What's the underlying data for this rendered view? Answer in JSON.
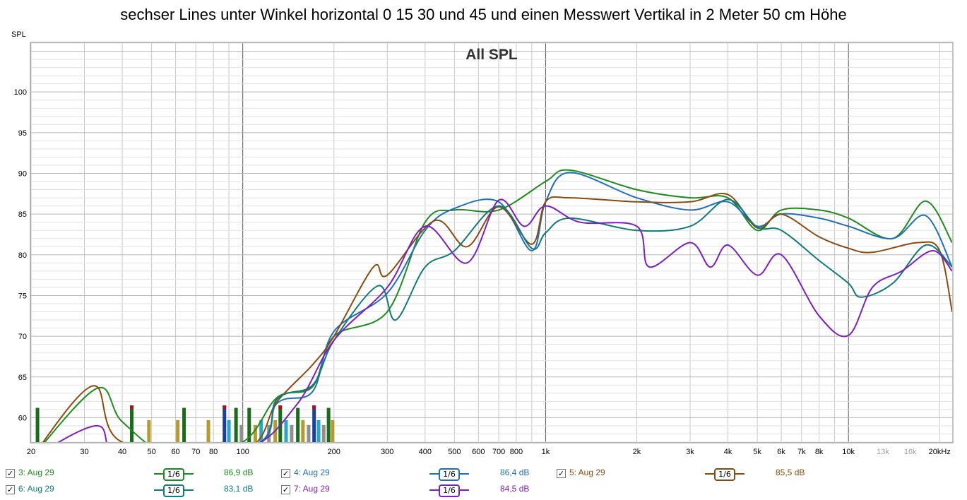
{
  "chart_data": {
    "type": "line",
    "title": "sechser Lines unter Winkel horizontal 0 15 30 und 45 und einen Messwert Vertikal in 2 Meter 50 cm Höhe",
    "subtitle": "All SPL",
    "ylabel": "SPL",
    "xlabel": "",
    "xscale": "log",
    "xlim": [
      20,
      22000
    ],
    "ylim": [
      57,
      106
    ],
    "grid": true,
    "x_ticks": [
      {
        "v": 20,
        "label": "20"
      },
      {
        "v": 30,
        "label": "30"
      },
      {
        "v": 40,
        "label": "40"
      },
      {
        "v": 50,
        "label": "50"
      },
      {
        "v": 60,
        "label": "60"
      },
      {
        "v": 70,
        "label": "70"
      },
      {
        "v": 80,
        "label": "80"
      },
      {
        "v": 100,
        "label": "100"
      },
      {
        "v": 200,
        "label": "200"
      },
      {
        "v": 300,
        "label": "300"
      },
      {
        "v": 400,
        "label": "400"
      },
      {
        "v": 500,
        "label": "500"
      },
      {
        "v": 600,
        "label": "600"
      },
      {
        "v": 700,
        "label": "700"
      },
      {
        "v": 800,
        "label": "800"
      },
      {
        "v": 1000,
        "label": "1k"
      },
      {
        "v": 2000,
        "label": "2k"
      },
      {
        "v": 3000,
        "label": "3k"
      },
      {
        "v": 4000,
        "label": "4k"
      },
      {
        "v": 5000,
        "label": "5k"
      },
      {
        "v": 6000,
        "label": "6k"
      },
      {
        "v": 7000,
        "label": "7k"
      },
      {
        "v": 8000,
        "label": "8k"
      },
      {
        "v": 10000,
        "label": "10k"
      },
      {
        "v": 13000,
        "label": "13k",
        "faint": true
      },
      {
        "v": 16000,
        "label": "16k",
        "faint": true
      },
      {
        "v": 20000,
        "label": "20kHz"
      }
    ],
    "y_ticks": [
      60,
      65,
      70,
      75,
      80,
      85,
      90,
      95,
      100
    ],
    "series": [
      {
        "name": "3: Aug 29",
        "color": "#1c8c1c",
        "x": [
          20,
          33,
          40,
          60,
          100,
          130,
          170,
          200,
          300,
          400,
          500,
          700,
          1000,
          1200,
          2000,
          3000,
          4000,
          5000,
          6000,
          8000,
          10000,
          14000,
          18000,
          22000
        ],
        "y": [
          55,
          63.6,
          59.5,
          55,
          57,
          62.5,
          63.8,
          70,
          73,
          84,
          85.5,
          85.5,
          89,
          90.4,
          88,
          87,
          87,
          83,
          85.5,
          85.5,
          84.5,
          82,
          86.6,
          81.5
        ]
      },
      {
        "name": "4: Aug 29",
        "color": "#1f6fbf",
        "x": [
          20,
          100,
          130,
          170,
          200,
          300,
          400,
          500,
          700,
          900,
          1000,
          1200,
          2000,
          3000,
          4000,
          5000,
          6000,
          8000,
          10000,
          14000,
          18000,
          22000
        ],
        "y": [
          55,
          56,
          61.8,
          63.2,
          70.6,
          75.3,
          83,
          85.7,
          86.5,
          80.5,
          86.5,
          90.1,
          87,
          85.5,
          86.5,
          83.5,
          85,
          84.5,
          83.5,
          82,
          84.8,
          78.5
        ]
      },
      {
        "name": "5: Aug 29",
        "color": "#8b4a0e",
        "x": [
          20,
          32,
          40,
          100,
          130,
          170,
          200,
          270,
          300,
          430,
          550,
          700,
          900,
          1000,
          1200,
          2000,
          3000,
          4000,
          5000,
          6000,
          8000,
          10000,
          12000,
          17000,
          20000,
          22000
        ],
        "y": [
          55,
          63.9,
          57,
          56,
          62,
          66.5,
          70,
          78.5,
          77.5,
          84.2,
          81,
          85.9,
          81.3,
          86.5,
          87,
          86.5,
          86.5,
          87.4,
          83.3,
          85.0,
          82.2,
          80.8,
          80.3,
          81.5,
          80.5,
          73
        ]
      },
      {
        "name": "6: Aug 29",
        "color": "#0f7b7b",
        "x": [
          20,
          100,
          130,
          170,
          200,
          280,
          320,
          400,
          500,
          700,
          900,
          1000,
          1200,
          2000,
          3000,
          4000,
          5000,
          6000,
          8000,
          10000,
          11000,
          14000,
          18000,
          22000
        ],
        "y": [
          55,
          56,
          62.3,
          64,
          69.5,
          76.2,
          72,
          78.5,
          80.5,
          86,
          80.8,
          82.7,
          84.5,
          83,
          83.5,
          86.8,
          83.4,
          83.0,
          79.3,
          76.5,
          74.8,
          76.5,
          81.2,
          78.5
        ]
      },
      {
        "name": "7: Aug 29",
        "color": "#7d1fbf",
        "x": [
          20,
          33,
          40,
          100,
          150,
          200,
          300,
          400,
          550,
          700,
          850,
          1000,
          1300,
          2000,
          2200,
          3000,
          3500,
          4000,
          5000,
          6000,
          8000,
          10000,
          12000,
          15000,
          19000,
          22000
        ],
        "y": [
          55,
          59,
          55,
          56,
          61.5,
          69.5,
          76,
          83.5,
          79,
          86.7,
          83.5,
          86,
          84,
          83.5,
          78.5,
          81.5,
          78.5,
          81.2,
          77.5,
          80.0,
          72.5,
          70.1,
          76,
          78,
          80.5,
          78
        ]
      }
    ],
    "spikes": [
      {
        "f": 21,
        "v": 61.2,
        "color": "#1a6b1a",
        "top": "#1a6b1a"
      },
      {
        "f": 43,
        "v": 61.5,
        "color": "#1a6b1a",
        "top": "#b01010"
      },
      {
        "f": 49,
        "v": 59.7,
        "color": "#b59a30",
        "top": "#b59a30"
      },
      {
        "f": 61,
        "v": 59.7,
        "color": "#b59a30",
        "top": "#b59a30"
      },
      {
        "f": 64,
        "v": 61.2,
        "color": "#1a6b1a",
        "top": "#1a6b1a"
      },
      {
        "f": 77,
        "v": 59.7,
        "color": "#b59a30",
        "top": "#b59a30"
      },
      {
        "f": 87,
        "v": 61.5,
        "color": "#1a3fa0",
        "top": "#b01010"
      },
      {
        "f": 90,
        "v": 59.7,
        "color": "#2aa7c0",
        "top": "#2aa7c0"
      },
      {
        "f": 95,
        "v": 61.2,
        "color": "#1a6b1a",
        "top": "#1a6b1a"
      },
      {
        "f": 99,
        "v": 59.1,
        "color": "#909090",
        "top": "#909090"
      },
      {
        "f": 105,
        "v": 61.2,
        "color": "#1a6b1a",
        "top": "#1a6b1a"
      },
      {
        "f": 110,
        "v": 59.1,
        "color": "#b59a30",
        "top": "#b59a30"
      },
      {
        "f": 115,
        "v": 59.7,
        "color": "#2aa7c0",
        "top": "#2aa7c0"
      },
      {
        "f": 122,
        "v": 59.1,
        "color": "#909090",
        "top": "#909090"
      },
      {
        "f": 128,
        "v": 59.7,
        "color": "#b59a30",
        "top": "#b59a30"
      },
      {
        "f": 133,
        "v": 61.5,
        "color": "#1a6b1a",
        "top": "#b01010"
      },
      {
        "f": 139,
        "v": 59.7,
        "color": "#2aa7c0",
        "top": "#2aa7c0"
      },
      {
        "f": 145,
        "v": 59.1,
        "color": "#909090",
        "top": "#909090"
      },
      {
        "f": 152,
        "v": 61.2,
        "color": "#1a6b1a",
        "top": "#1a6b1a"
      },
      {
        "f": 158,
        "v": 59.7,
        "color": "#b59a30",
        "top": "#b59a30"
      },
      {
        "f": 165,
        "v": 59.1,
        "color": "#909090",
        "top": "#909090"
      },
      {
        "f": 172,
        "v": 61.5,
        "color": "#1a3fa0",
        "top": "#b01010"
      },
      {
        "f": 178,
        "v": 59.7,
        "color": "#2aa7c0",
        "top": "#2aa7c0"
      },
      {
        "f": 185,
        "v": 59.1,
        "color": "#909090",
        "top": "#909090"
      },
      {
        "f": 192,
        "v": 61.2,
        "color": "#1a6b1a",
        "top": "#1a6b1a"
      },
      {
        "f": 198,
        "v": 59.7,
        "color": "#b59a30",
        "top": "#b59a30"
      }
    ]
  },
  "legend": [
    {
      "check": "✓",
      "label": "3: Aug 29",
      "smoothing": "1/6",
      "value": "86,9 dB",
      "color": "#1c8c1c"
    },
    {
      "check": "✓",
      "label": "4: Aug 29",
      "smoothing": "1/6",
      "value": "86,4 dB",
      "color": "#1f6fbf"
    },
    {
      "check": "✓",
      "label": "5: Aug 29",
      "smoothing": "1/6",
      "value": "85,5 dB",
      "color": "#8b4a0e"
    },
    {
      "check": "✓",
      "label": "6: Aug 29",
      "smoothing": "1/6",
      "value": "83,1 dB",
      "color": "#0f7b7b"
    },
    {
      "check": "✓",
      "label": "7: Aug 29",
      "smoothing": "1/6",
      "value": "84,5 dB",
      "color": "#7d1fbf"
    }
  ]
}
